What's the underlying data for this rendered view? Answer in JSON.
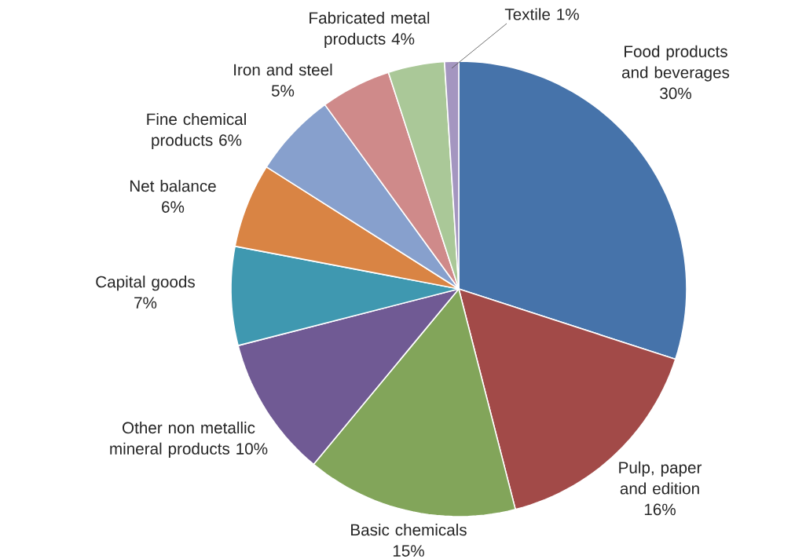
{
  "chart_data": {
    "type": "pie",
    "categories": [
      "Food products and beverages",
      "Pulp, paper and edition",
      "Basic chemicals",
      "Other non metallic mineral products",
      "Capital goods",
      "Net balance",
      "Fine chemical products",
      "Iron and steel",
      "Fabricated metal products",
      "Textile"
    ],
    "values": [
      30,
      16,
      15,
      10,
      7,
      6,
      6,
      5,
      4,
      1
    ],
    "value_labels": [
      "30%",
      "16%",
      "15%",
      "10%",
      "7%",
      "6%",
      "6%",
      "5%",
      "4%",
      "1%"
    ],
    "colors": [
      "#4673aa",
      "#a24a48",
      "#82a55a",
      "#705a94",
      "#3f98b0",
      "#d98444",
      "#87a0cd",
      "#cf8a8a",
      "#aac898",
      "#a496c0"
    ]
  }
}
